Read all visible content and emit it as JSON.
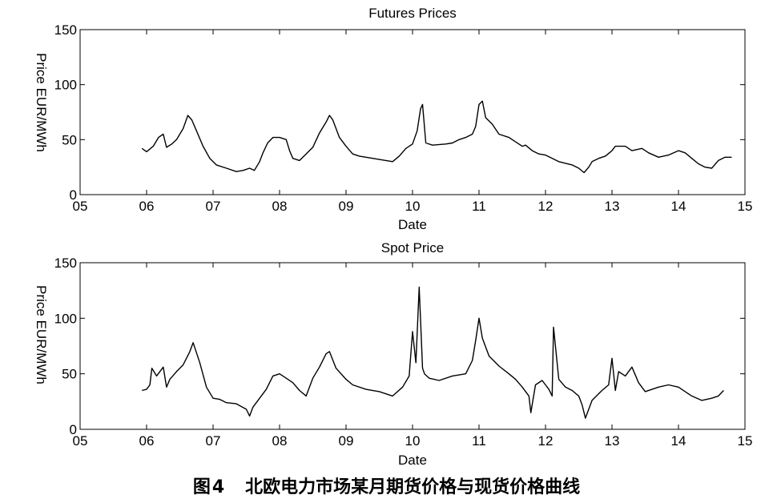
{
  "chart_data": [
    {
      "type": "line",
      "title": "Futures Prices",
      "xlabel": "Date",
      "ylabel": "Price EUR/MWh",
      "x_ticks": [
        "05",
        "06",
        "07",
        "08",
        "09",
        "10",
        "11",
        "12",
        "13",
        "14",
        "15"
      ],
      "y_ticks": [
        0,
        50,
        100,
        150
      ],
      "xlim": [
        5,
        15
      ],
      "ylim": [
        0,
        150
      ],
      "grid": false,
      "series": [
        {
          "color": "#000000",
          "x": [
            5.93,
            6.0,
            6.1,
            6.18,
            6.25,
            6.3,
            6.38,
            6.45,
            6.55,
            6.62,
            6.68,
            6.75,
            6.85,
            6.95,
            7.05,
            7.2,
            7.35,
            7.45,
            7.55,
            7.62,
            7.7,
            7.75,
            7.82,
            7.9,
            8.0,
            8.1,
            8.15,
            8.2,
            8.3,
            8.4,
            8.5,
            8.6,
            8.7,
            8.75,
            8.8,
            8.9,
            9.0,
            9.1,
            9.2,
            9.3,
            9.4,
            9.5,
            9.6,
            9.7,
            9.8,
            9.9,
            9.95,
            10.0,
            10.07,
            10.12,
            10.15,
            10.2,
            10.3,
            10.5,
            10.6,
            10.7,
            10.8,
            10.9,
            10.95,
            11.0,
            11.05,
            11.1,
            11.2,
            11.3,
            11.45,
            11.55,
            11.65,
            11.7,
            11.8,
            11.9,
            12.0,
            12.2,
            12.4,
            12.5,
            12.58,
            12.65,
            12.7,
            12.8,
            12.9,
            13.0,
            13.05,
            13.2,
            13.3,
            13.45,
            13.55,
            13.7,
            13.85,
            14.0,
            14.1,
            14.2,
            14.3,
            14.4,
            14.5,
            14.6,
            14.7,
            14.8
          ],
          "y": [
            42,
            39,
            44,
            52,
            55,
            43,
            46,
            50,
            60,
            72,
            68,
            58,
            44,
            33,
            27,
            24,
            21,
            22,
            24,
            22,
            30,
            38,
            47,
            52,
            52,
            50,
            40,
            33,
            31,
            37,
            43,
            56,
            66,
            72,
            68,
            52,
            44,
            37,
            35,
            34,
            33,
            32,
            31,
            30,
            35,
            42,
            44,
            46,
            58,
            78,
            82,
            47,
            45,
            46,
            47,
            50,
            52,
            55,
            62,
            82,
            85,
            70,
            64,
            55,
            52,
            48,
            44,
            45,
            40,
            37,
            36,
            30,
            27,
            24,
            20,
            25,
            30,
            33,
            35,
            40,
            44,
            44,
            40,
            42,
            38,
            34,
            36,
            40,
            38,
            33,
            28,
            25,
            24,
            31,
            34,
            34
          ]
        }
      ]
    },
    {
      "type": "line",
      "title": "Spot Price",
      "xlabel": "Date",
      "ylabel": "Price EUR/MWh",
      "x_ticks": [
        "05",
        "06",
        "07",
        "08",
        "09",
        "10",
        "11",
        "12",
        "13",
        "14",
        "15"
      ],
      "y_ticks": [
        0,
        50,
        100,
        150
      ],
      "xlim": [
        5,
        15
      ],
      "ylim": [
        0,
        150
      ],
      "grid": false,
      "series": [
        {
          "color": "#000000",
          "x": [
            5.93,
            6.0,
            6.05,
            6.08,
            6.15,
            6.25,
            6.3,
            6.35,
            6.45,
            6.55,
            6.65,
            6.7,
            6.8,
            6.9,
            7.0,
            7.1,
            7.2,
            7.35,
            7.5,
            7.55,
            7.6,
            7.7,
            7.8,
            7.9,
            8.0,
            8.1,
            8.2,
            8.3,
            8.4,
            8.5,
            8.6,
            8.7,
            8.75,
            8.85,
            9.0,
            9.1,
            9.3,
            9.5,
            9.7,
            9.85,
            9.95,
            10.0,
            10.05,
            10.1,
            10.15,
            10.18,
            10.25,
            10.4,
            10.6,
            10.8,
            10.9,
            10.95,
            11.0,
            11.05,
            11.15,
            11.3,
            11.45,
            11.55,
            11.65,
            11.75,
            11.78,
            11.85,
            11.95,
            12.0,
            12.05,
            12.1,
            12.12,
            12.2,
            12.3,
            12.4,
            12.5,
            12.55,
            12.6,
            12.7,
            12.85,
            12.95,
            13.0,
            13.05,
            13.1,
            13.2,
            13.3,
            13.4,
            13.5,
            13.7,
            13.85,
            14.0,
            14.1,
            14.2,
            14.35,
            14.5,
            14.6,
            14.68
          ],
          "y": [
            35,
            36,
            40,
            55,
            48,
            56,
            38,
            45,
            52,
            58,
            70,
            78,
            60,
            38,
            28,
            27,
            24,
            23,
            18,
            12,
            20,
            28,
            36,
            48,
            50,
            46,
            42,
            35,
            30,
            46,
            56,
            68,
            70,
            55,
            45,
            40,
            36,
            34,
            30,
            38,
            48,
            88,
            60,
            128,
            55,
            50,
            46,
            44,
            48,
            50,
            62,
            80,
            100,
            82,
            66,
            57,
            50,
            45,
            38,
            30,
            15,
            40,
            44,
            40,
            36,
            30,
            92,
            45,
            38,
            35,
            30,
            22,
            10,
            26,
            35,
            40,
            64,
            35,
            52,
            48,
            56,
            42,
            34,
            38,
            40,
            38,
            34,
            30,
            26,
            28,
            30,
            35
          ]
        }
      ]
    }
  ],
  "caption": {
    "label": "图",
    "number": "4",
    "text": "北欧电力市场某月期货价格与现货价格曲线"
  }
}
